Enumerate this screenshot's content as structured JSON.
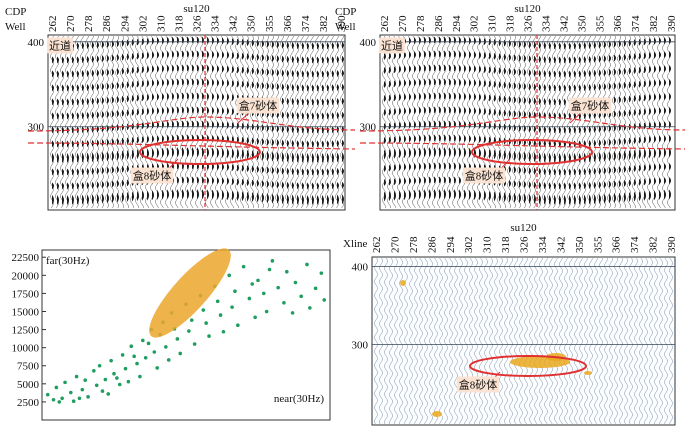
{
  "chart_data": [
    {
      "type": "seismic",
      "title": "su120",
      "x_label": "CDP",
      "well_label": "Well",
      "categories": [
        262,
        270,
        278,
        286,
        294,
        302,
        310,
        318,
        326,
        334,
        342,
        350,
        355,
        366,
        374,
        382,
        390
      ],
      "ylim": [
        202,
        408
      ],
      "yticks": [
        300,
        400
      ],
      "annotations": [
        "近道",
        "盒7砂体",
        "盒8砂体"
      ]
    },
    {
      "type": "seismic",
      "title": "su120",
      "x_label": "CDP",
      "well_label": "Well",
      "categories": [
        262,
        270,
        278,
        286,
        294,
        302,
        310,
        318,
        326,
        334,
        342,
        350,
        355,
        366,
        374,
        382,
        390
      ],
      "ylim": [
        202,
        408
      ],
      "yticks": [
        300,
        400
      ],
      "annotations": [
        "近道",
        "盒7砂体",
        "盒8砂体"
      ]
    },
    {
      "type": "scatter",
      "y_label": "far(30Hz)",
      "x_label": "near(30Hz)",
      "color": "#1f9e5f",
      "x": [
        2,
        4,
        5,
        7,
        8,
        10,
        11,
        12,
        14,
        15,
        16,
        18,
        19,
        20,
        22,
        23,
        24,
        25,
        27,
        28,
        29,
        30,
        31,
        33,
        34,
        35,
        36,
        38,
        39,
        40,
        42,
        43,
        44,
        45,
        47,
        48,
        50,
        51,
        53,
        55,
        57,
        58,
        60,
        62,
        63,
        65,
        66,
        68,
        70,
        72,
        74,
        75,
        77,
        78,
        80,
        82,
        84,
        85,
        87,
        88,
        90,
        92,
        93,
        95,
        97,
        98,
        6,
        13,
        21,
        26,
        32,
        37,
        41,
        46,
        52,
        56,
        61,
        67,
        73,
        79
      ],
      "y": [
        3500,
        2800,
        4500,
        3000,
        5200,
        3800,
        2600,
        6000,
        4200,
        5500,
        3200,
        6800,
        4800,
        7500,
        5600,
        3600,
        8200,
        6400,
        4900,
        9000,
        7100,
        5300,
        10200,
        7800,
        6000,
        11000,
        8600,
        12500,
        9400,
        7200,
        13500,
        10100,
        8300,
        14800,
        11200,
        9200,
        16000,
        12300,
        10500,
        17200,
        13400,
        11600,
        18500,
        14500,
        12200,
        20000,
        15600,
        13100,
        21200,
        16800,
        14200,
        19300,
        17500,
        15000,
        22000,
        18300,
        16200,
        20500,
        14800,
        19000,
        17100,
        21500,
        15500,
        18200,
        20300,
        16600,
        2500,
        3000,
        4000,
        5800,
        8800,
        10600,
        11800,
        12600,
        13800,
        15200,
        16400,
        17800,
        18800,
        20800
      ],
      "xlim": [
        0,
        100
      ],
      "ylim": [
        0,
        23500
      ],
      "yticks": [
        2500,
        5000,
        7500,
        10000,
        12500,
        15000,
        17500,
        20000,
        22500
      ]
    },
    {
      "type": "seismic",
      "title": "su120",
      "x_label": "Xline",
      "categories": [
        262,
        270,
        278,
        286,
        294,
        302,
        310,
        318,
        326,
        334,
        342,
        350,
        355,
        366,
        374,
        382,
        390
      ],
      "ylim": [
        197,
        412
      ],
      "yticks": [
        300,
        400
      ],
      "annotations": [
        "盒8砂体"
      ]
    }
  ]
}
